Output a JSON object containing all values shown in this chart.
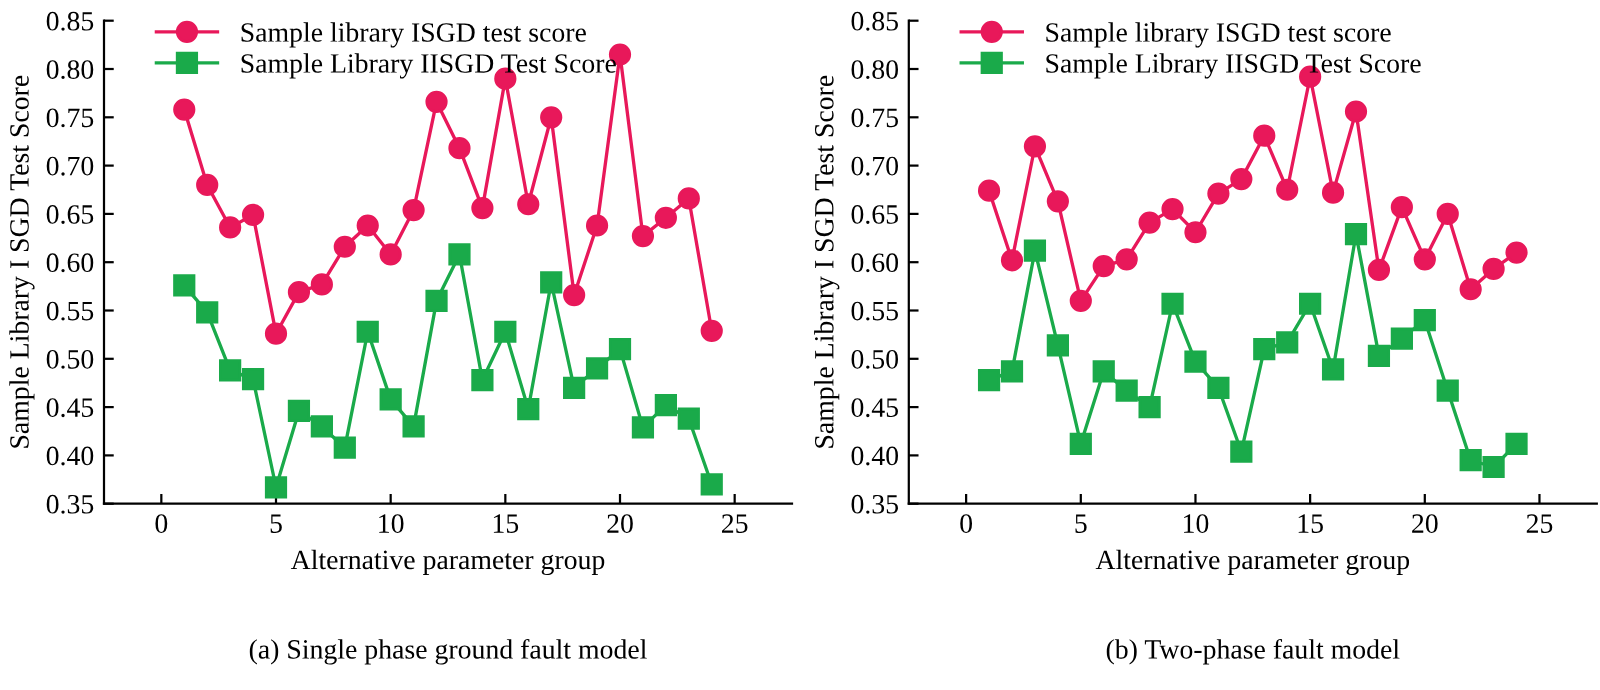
{
  "chart_data": [
    {
      "type": "line",
      "title": "(a) Single phase ground fault model",
      "xlabel": "Alternative parameter group",
      "ylabel": "Sample Library I SGD Test Score",
      "x": [
        1,
        2,
        3,
        4,
        5,
        6,
        7,
        8,
        9,
        10,
        11,
        12,
        13,
        14,
        15,
        16,
        17,
        18,
        19,
        20,
        21,
        22,
        23,
        24
      ],
      "series": [
        {
          "name": "Sample library ISGD test score",
          "color": "#e8185a",
          "marker": "circle",
          "values": [
            0.758,
            0.68,
            0.636,
            0.649,
            0.526,
            0.569,
            0.577,
            0.616,
            0.638,
            0.608,
            0.654,
            0.766,
            0.718,
            0.656,
            0.79,
            0.66,
            0.75,
            0.566,
            0.638,
            0.815,
            0.627,
            0.646,
            0.666,
            0.529
          ]
        },
        {
          "name": "Sample Library IISGD Test Score",
          "color": "#1aaa4a",
          "marker": "square",
          "values": [
            0.576,
            0.548,
            0.488,
            0.479,
            0.367,
            0.446,
            0.43,
            0.408,
            0.528,
            0.458,
            0.43,
            0.56,
            0.608,
            0.478,
            0.528,
            0.448,
            0.579,
            0.47,
            0.49,
            0.51,
            0.429,
            0.452,
            0.438,
            0.37
          ]
        }
      ],
      "xlim": [
        -2.5,
        27.5
      ],
      "xticks": [
        0,
        5,
        10,
        15,
        20,
        25
      ],
      "ylim": [
        0.35,
        0.85
      ],
      "yticks": [
        {
          "value": 0.35,
          "label": "0.35"
        },
        {
          "value": 0.4,
          "label": "0.40"
        },
        {
          "value": 0.45,
          "label": "0.45"
        },
        {
          "value": 0.5,
          "label": "0.50"
        },
        {
          "value": 0.55,
          "label": "0.55"
        },
        {
          "value": 0.6,
          "label": "0.60"
        },
        {
          "value": 0.65,
          "label": "0.65"
        },
        {
          "value": 0.7,
          "label": "0.70"
        },
        {
          "value": 0.75,
          "label": "0.75"
        },
        {
          "value": 0.8,
          "label": "0.80"
        },
        {
          "value": 0.85,
          "label": "0.85"
        }
      ],
      "legend": "top left",
      "grid": false
    },
    {
      "type": "line",
      "title": "(b) Two-phase fault model",
      "xlabel": "Alternative parameter group",
      "ylabel": "Sample Library I SGD Test Score",
      "x": [
        1,
        2,
        3,
        4,
        5,
        6,
        7,
        8,
        9,
        10,
        11,
        12,
        13,
        14,
        15,
        16,
        17,
        18,
        19,
        20,
        21,
        22,
        23,
        24
      ],
      "series": [
        {
          "name": "Sample library ISGD test score",
          "color": "#e8185a",
          "marker": "circle",
          "values": [
            0.674,
            0.602,
            0.72,
            0.663,
            0.56,
            0.596,
            0.603,
            0.641,
            0.655,
            0.631,
            0.671,
            0.686,
            0.731,
            0.675,
            0.792,
            0.672,
            0.756,
            0.592,
            0.657,
            0.603,
            0.65,
            0.572,
            0.593,
            0.61
          ]
        },
        {
          "name": "Sample Library IISGD Test Score",
          "color": "#1aaa4a",
          "marker": "square",
          "values": [
            0.478,
            0.487,
            0.612,
            0.514,
            0.412,
            0.487,
            0.467,
            0.45,
            0.557,
            0.497,
            0.47,
            0.404,
            0.51,
            0.517,
            0.557,
            0.489,
            0.629,
            0.503,
            0.521,
            0.54,
            0.467,
            0.395,
            0.388,
            0.412
          ]
        }
      ],
      "xlim": [
        -2.5,
        27.5
      ],
      "xticks": [
        0,
        5,
        10,
        15,
        20,
        25
      ],
      "ylim": [
        0.35,
        0.85
      ],
      "yticks": [
        {
          "value": 0.35,
          "label": "0.35"
        },
        {
          "value": 0.4,
          "label": "0.40"
        },
        {
          "value": 0.45,
          "label": "0.45"
        },
        {
          "value": 0.5,
          "label": "0.50"
        },
        {
          "value": 0.55,
          "label": "0.55"
        },
        {
          "value": 0.6,
          "label": "0.60"
        },
        {
          "value": 0.65,
          "label": "0.65"
        },
        {
          "value": 0.7,
          "label": "0.70"
        },
        {
          "value": 0.75,
          "label": "0.75"
        },
        {
          "value": 0.8,
          "label": "0.80"
        },
        {
          "value": 0.85,
          "label": "0.85"
        }
      ],
      "legend": "top left",
      "grid": false
    }
  ]
}
